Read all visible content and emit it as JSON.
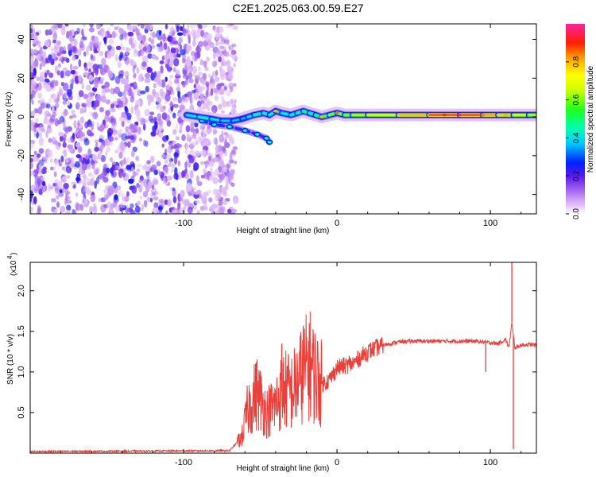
{
  "title": "C2E1.2025.063.00.59.E27",
  "chart_data": [
    {
      "type": "heatmap",
      "xlabel": "Height of straight line (km)",
      "ylabel": "Frequency (Hz)",
      "xlim": [
        -200,
        130
      ],
      "ylim": [
        -50,
        48
      ],
      "xticks": [
        -100,
        0,
        100
      ],
      "xtick_labels": [
        "-100",
        "0",
        "100"
      ],
      "yticks": [
        -40,
        -20,
        0,
        20,
        40
      ],
      "ytick_labels": [
        "-40",
        "-20",
        "0",
        "20",
        "40"
      ],
      "colorbar": {
        "label": "Normalized spectral amplitude",
        "range": [
          0,
          1
        ],
        "ticks": [
          0.0,
          0.2,
          0.4,
          0.6,
          0.8
        ],
        "tick_labels": [
          "0.0",
          "0.2",
          "0.4",
          "0.6",
          "0.8"
        ]
      },
      "noise_region_x": [
        -200,
        -72
      ],
      "ridge": {
        "x": [
          -98,
          -90,
          -82,
          -75,
          -68,
          -62,
          -58,
          -54,
          -48,
          -44,
          -40,
          -36,
          -30,
          -26,
          -22,
          -18,
          -14,
          -10,
          -5,
          0,
          5,
          10,
          20,
          40,
          60,
          80,
          95,
          105,
          115,
          125,
          130
        ],
        "y": [
          1,
          0,
          -1,
          -2,
          -2,
          -1,
          0,
          1,
          2,
          1,
          3,
          2,
          1,
          2,
          3,
          2,
          1,
          0,
          1,
          2,
          1,
          1,
          1,
          1,
          1,
          1,
          1,
          1,
          1,
          1,
          1
        ],
        "amplitude": [
          0.4,
          0.45,
          0.45,
          0.4,
          0.4,
          0.35,
          0.4,
          0.45,
          0.5,
          0.45,
          0.45,
          0.4,
          0.5,
          0.45,
          0.55,
          0.5,
          0.5,
          0.55,
          0.6,
          0.65,
          0.6,
          0.65,
          0.7,
          0.75,
          0.85,
          0.95,
          0.85,
          0.8,
          0.75,
          0.7,
          0.65
        ]
      },
      "branch": {
        "x": [
          -88,
          -80,
          -70,
          -60,
          -52,
          -46,
          -44
        ],
        "y": [
          -2,
          -4,
          -5,
          -7,
          -9,
          -11,
          -13
        ]
      }
    },
    {
      "type": "line",
      "xlabel": "Height of straight line (km)",
      "ylabel": "SNR (10 * v/v)",
      "scale_label": "(x10",
      "scale_exponent": "4",
      "xlim": [
        -200,
        130
      ],
      "ylim": [
        0,
        2.35
      ],
      "xticks": [
        -100,
        0,
        100
      ],
      "xtick_labels": [
        "-100",
        "0",
        "100"
      ],
      "yticks": [
        0.5,
        1.0,
        1.5,
        2.0
      ],
      "ytick_labels": [
        "0.5",
        "1.0",
        "1.5",
        "2.0"
      ],
      "color": "#e8403a",
      "envelope": {
        "x": [
          -200,
          -70,
          -62,
          -58,
          -52,
          -46,
          -40,
          -35,
          -30,
          -26,
          -22,
          -18,
          -14,
          -10,
          -5,
          0,
          10,
          20,
          30,
          40,
          50,
          60,
          70,
          80,
          90,
          95,
          100,
          105,
          110,
          112,
          114,
          116,
          120,
          125,
          130
        ],
        "y": [
          0.02,
          0.03,
          0.2,
          0.55,
          0.75,
          0.5,
          0.6,
          0.8,
          0.75,
          0.85,
          1.0,
          1.1,
          0.95,
          0.85,
          0.9,
          1.05,
          1.1,
          1.25,
          1.33,
          1.37,
          1.38,
          1.38,
          1.38,
          1.38,
          1.38,
          1.37,
          1.36,
          1.35,
          1.4,
          1.3,
          1.6,
          1.3,
          1.33,
          1.34,
          1.33
        ]
      },
      "spikes": [
        {
          "x": -50,
          "y": 1.0
        },
        {
          "x": -36,
          "y": 1.35
        },
        {
          "x": -22,
          "y": 1.57
        },
        {
          "x": -16,
          "y": 1.35
        },
        {
          "x": 8,
          "y": 1.2
        },
        {
          "x": 97,
          "y": 1.0
        },
        {
          "x": 114,
          "y": 2.35
        },
        {
          "x": 115,
          "y": 0.05
        }
      ]
    }
  ]
}
